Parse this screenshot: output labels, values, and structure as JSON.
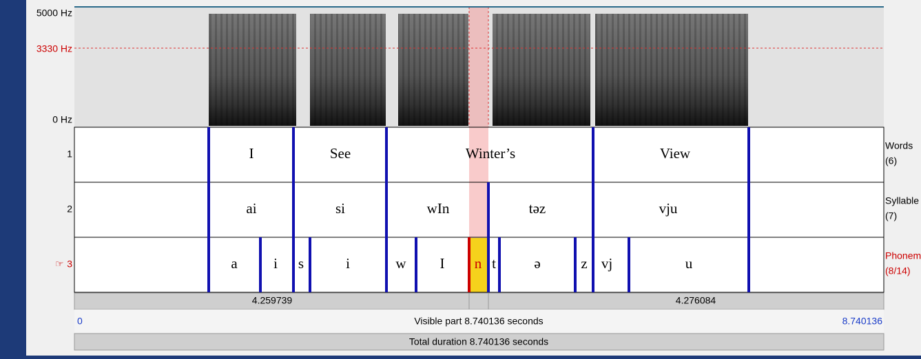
{
  "spectrogram": {
    "freq_labels": [
      "5000 Hz",
      "3330 Hz",
      "0 Hz"
    ]
  },
  "tiers": [
    {
      "number": "1",
      "name": "Words",
      "count": "(6)",
      "intervals": [
        "I",
        "See",
        "Winter’s",
        "View"
      ]
    },
    {
      "number": "2",
      "name": "Syllable",
      "count": "(7)",
      "intervals": [
        "ai",
        "si",
        "wIn",
        "təz",
        "vju"
      ]
    },
    {
      "number": "3",
      "name": "Phonem",
      "count": "(8/14)",
      "intervals": [
        "a",
        "i",
        "s",
        "i",
        "w",
        "I",
        "n",
        "t",
        "ə",
        "z",
        "vj",
        "u"
      ]
    }
  ],
  "time_bar": {
    "left": "4.259739",
    "right": "4.276084"
  },
  "visible": {
    "start": "0",
    "label": "Visible part 8.740136 seconds",
    "end": "8.740136"
  },
  "total": "Total duration 8.740136 seconds"
}
